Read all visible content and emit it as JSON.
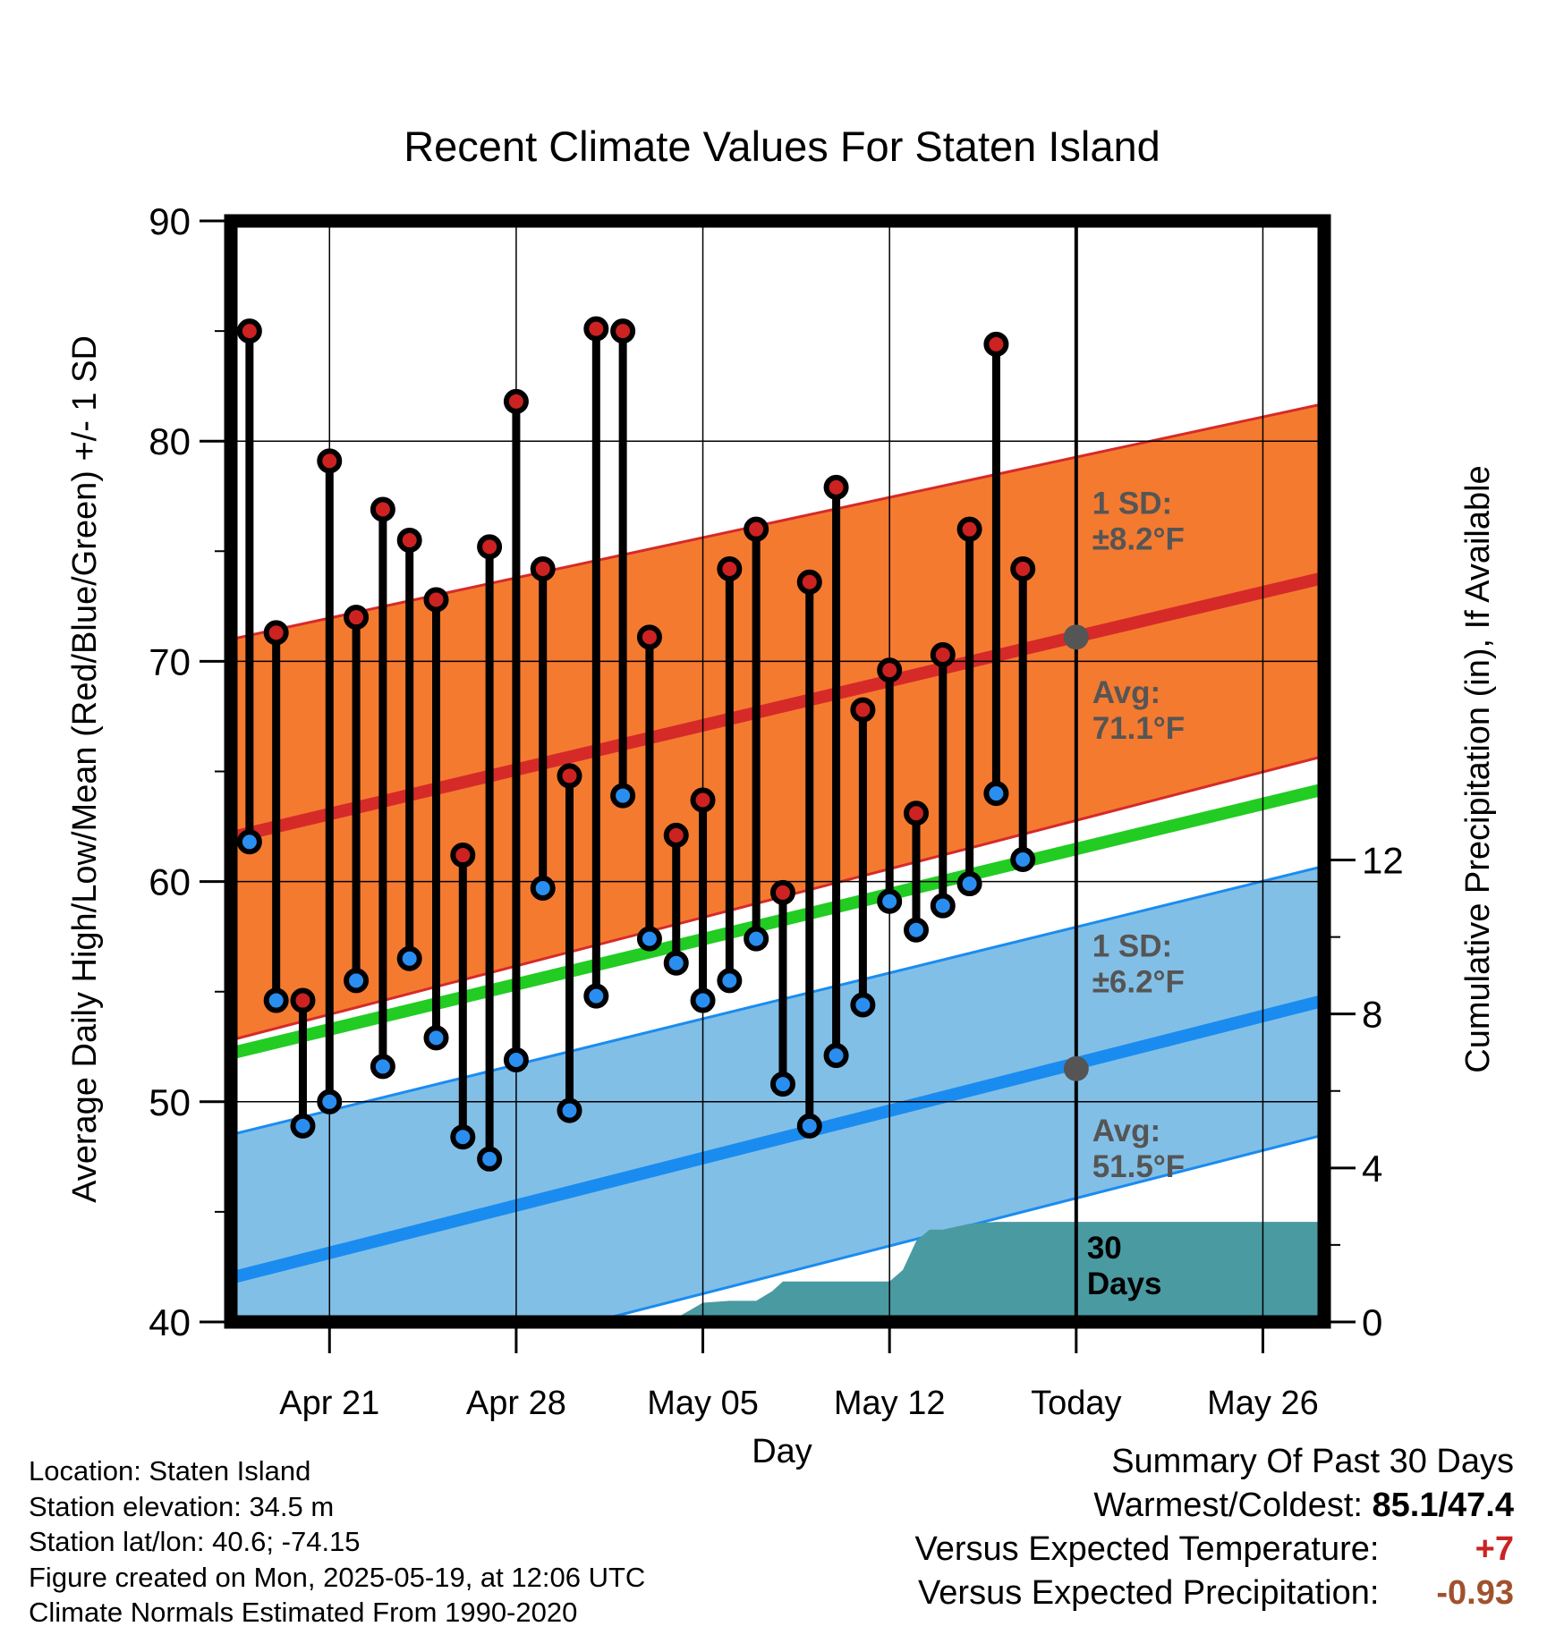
{
  "chart_data": {
    "type": "line",
    "title": "Recent Climate Values For Staten Island",
    "xlabel": "Day",
    "ylabel": "Average Daily High/Low/Mean (Red/Blue/Green) +/- 1 SD",
    "ylabel_right": "Cumulative Precipitation (in), If Available",
    "ylim": [
      40,
      90
    ],
    "ylim_right": [
      0,
      28.6
    ],
    "xlim": [
      -1.7,
      39.3
    ],
    "y_ticks": [
      40,
      50,
      60,
      70,
      80,
      90
    ],
    "y_ticks_right": [
      0,
      4,
      8,
      12
    ],
    "x_ticks": [
      {
        "x": 2,
        "label": "Apr 21"
      },
      {
        "x": 9,
        "label": "Apr 28"
      },
      {
        "x": 16,
        "label": "May 05"
      },
      {
        "x": 23,
        "label": "May 12"
      },
      {
        "x": 30,
        "label": "Today"
      },
      {
        "x": 37,
        "label": "May 26"
      }
    ],
    "today_x": 30,
    "grid": true,
    "daily": {
      "x": [
        -1,
        0,
        1,
        2,
        3,
        4,
        5,
        6,
        7,
        8,
        9,
        10,
        11,
        12,
        13,
        14,
        15,
        16,
        17,
        18,
        19,
        20,
        21,
        22,
        23,
        24,
        25,
        26,
        27,
        28,
        29
      ],
      "highs": [
        85.0,
        71.3,
        54.6,
        79.1,
        72.0,
        76.9,
        75.5,
        72.8,
        61.2,
        75.2,
        81.8,
        74.2,
        64.8,
        85.1,
        85.0,
        71.1,
        62.1,
        63.7,
        74.2,
        76.0,
        59.5,
        73.6,
        77.9,
        67.8,
        69.6,
        63.1,
        70.3,
        76.0,
        84.4,
        74.2,
        null
      ],
      "lows": [
        61.8,
        54.6,
        48.9,
        50.0,
        55.5,
        51.6,
        56.5,
        52.9,
        48.4,
        47.4,
        51.9,
        59.7,
        49.6,
        54.8,
        63.9,
        57.4,
        56.3,
        54.6,
        55.5,
        57.4,
        50.8,
        48.9,
        52.1,
        54.4,
        59.1,
        57.8,
        58.9,
        59.9,
        64.0,
        61.0,
        null
      ]
    },
    "series": [
      {
        "name": "Avg High",
        "x": [
          -1.7,
          39.3
        ],
        "y": [
          62.0,
          73.8
        ]
      },
      {
        "name": "Avg Mean",
        "x": [
          -1.7,
          39.3
        ],
        "y": [
          52.2,
          64.2
        ]
      },
      {
        "name": "Avg Low",
        "x": [
          -1.7,
          39.3
        ],
        "y": [
          42.0,
          54.6
        ]
      }
    ],
    "bands": [
      {
        "name": "High ±1 SD",
        "x": [
          -1.7,
          39.3
        ],
        "upper": [
          71.0,
          81.7
        ],
        "lower": [
          52.8,
          65.7
        ]
      },
      {
        "name": "Low ±1 SD",
        "x": [
          -1.7,
          39.3
        ],
        "upper": [
          48.5,
          60.7
        ],
        "lower": [
          35.8,
          48.5
        ]
      }
    ],
    "precip_cumulative": {
      "x": [
        14.8,
        15.0,
        16.0,
        17.0,
        18.0,
        18.6,
        19.0,
        20.0,
        21.0,
        22.0,
        23.0,
        23.5,
        24.0,
        24.5,
        25.0,
        26.0,
        27.0,
        28.0,
        29.0,
        30.0,
        31.0,
        39.3
      ],
      "y": [
        0.0,
        0.1,
        0.5,
        0.55,
        0.55,
        0.8,
        1.05,
        1.05,
        1.05,
        1.05,
        1.05,
        1.35,
        2.1,
        2.4,
        2.4,
        2.55,
        2.6,
        2.6,
        2.6,
        2.6,
        2.6,
        2.6
      ]
    },
    "precip_label": "30\nDays",
    "annotations": [
      {
        "text": "1 SD:\n±8.2°F",
        "x": 30.6,
        "y": 76.7
      },
      {
        "text": "Avg:\n71.1°F",
        "x": 30.6,
        "y": 68.1
      },
      {
        "text": "1 SD:\n±6.2°F",
        "x": 30.6,
        "y": 56.6
      },
      {
        "text": "Avg:\n51.5°F",
        "x": 30.6,
        "y": 48.2
      }
    ],
    "today_markers": [
      {
        "x": 30,
        "y": 71.1
      },
      {
        "x": 30,
        "y": 51.5
      }
    ]
  },
  "footer": {
    "lines": [
      "Location: Staten Island",
      "Station elevation: 34.5 m",
      "Station lat/lon: 40.6; -74.15",
      "Figure created on Mon, 2025-05-19, at 12:06 UTC",
      "Climate Normals Estimated From 1990-2020"
    ]
  },
  "summary": {
    "heading": "Summary Of Past 30 Days",
    "rows": [
      {
        "label": "Warmest/Coldest:",
        "value": "85.1/47.4",
        "color": "#000000"
      },
      {
        "label": "Versus Expected Temperature:",
        "value": "+7",
        "color": "#cc2222"
      },
      {
        "label": "Versus Expected Precipitation:",
        "value": "-0.93",
        "color": "#a0522d"
      }
    ]
  },
  "colors": {
    "high_band": "#f47a30",
    "high_band_edge": "#d62a28",
    "avg_high": "#d62a28",
    "avg_mean": "#22cc22",
    "low_band": "#82bfe6",
    "low_band_edge": "#1a8cf0",
    "avg_low": "#1a8cf0",
    "precip": "#4a9aa2",
    "high_dot": "#cc2222",
    "low_dot": "#2a8ef0",
    "annotation": "#555555",
    "marker": "#555555"
  }
}
